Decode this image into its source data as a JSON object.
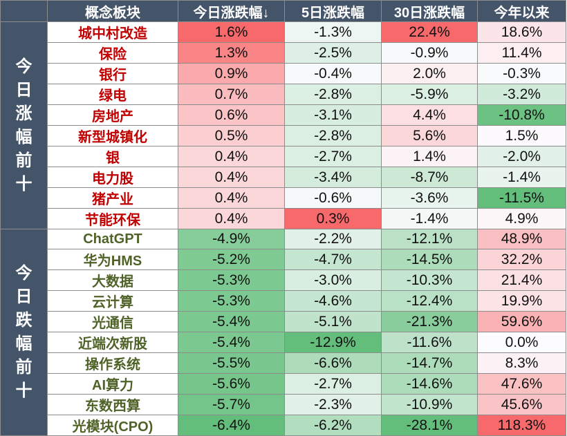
{
  "chart_data": {
    "type": "table",
    "columns": [
      "概念板块",
      "今日涨跌幅↓",
      "5日涨跌幅",
      "30日涨跌幅",
      "今年以来"
    ],
    "groups": [
      {
        "label": "今日涨幅前十",
        "rows": [
          {
            "name": "城中村改造",
            "values": [
              "1.6%",
              "-1.3%",
              "22.4%",
              "18.6%"
            ]
          },
          {
            "name": "保险",
            "values": [
              "1.3%",
              "-2.5%",
              "-0.9%",
              "11.4%"
            ]
          },
          {
            "name": "银行",
            "values": [
              "0.9%",
              "-0.4%",
              "2.0%",
              "-0.3%"
            ]
          },
          {
            "name": "绿电",
            "values": [
              "0.7%",
              "-2.8%",
              "-5.9%",
              "-3.2%"
            ]
          },
          {
            "name": "房地产",
            "values": [
              "0.6%",
              "-3.1%",
              "4.4%",
              "-10.8%"
            ]
          },
          {
            "name": "新型城镇化",
            "values": [
              "0.5%",
              "-2.8%",
              "5.6%",
              "1.5%"
            ]
          },
          {
            "name": "银",
            "values": [
              "0.4%",
              "-2.7%",
              "1.4%",
              "-2.0%"
            ]
          },
          {
            "name": "电力股",
            "values": [
              "0.4%",
              "-3.4%",
              "-8.7%",
              "-1.4%"
            ]
          },
          {
            "name": "猪产业",
            "values": [
              "0.4%",
              "-0.6%",
              "-3.6%",
              "-11.5%"
            ]
          },
          {
            "name": "节能环保",
            "values": [
              "0.4%",
              "0.3%",
              "-1.4%",
              "4.9%"
            ]
          }
        ]
      },
      {
        "label": "今日跌幅前十",
        "rows": [
          {
            "name": "ChatGPT",
            "values": [
              "-4.9%",
              "-2.2%",
              "-12.1%",
              "48.9%"
            ]
          },
          {
            "name": "华为HMS",
            "values": [
              "-5.2%",
              "-4.7%",
              "-14.5%",
              "32.2%"
            ]
          },
          {
            "name": "大数据",
            "values": [
              "-5.3%",
              "-3.0%",
              "-10.3%",
              "21.4%"
            ]
          },
          {
            "name": "云计算",
            "values": [
              "-5.3%",
              "-4.6%",
              "-12.4%",
              "19.9%"
            ]
          },
          {
            "name": "光通信",
            "values": [
              "-5.4%",
              "-5.1%",
              "-21.3%",
              "59.6%"
            ]
          },
          {
            "name": "近端次新股",
            "values": [
              "-5.4%",
              "-12.9%",
              "-11.6%",
              "0.0%"
            ]
          },
          {
            "name": "操作系统",
            "values": [
              "-5.5%",
              "-6.6%",
              "-14.7%",
              "8.3%"
            ]
          },
          {
            "name": "AI算力",
            "values": [
              "-5.6%",
              "-2.7%",
              "-14.6%",
              "47.6%"
            ]
          },
          {
            "name": "东数西算",
            "values": [
              "-5.7%",
              "-2.3%",
              "-10.9%",
              "45.6%"
            ]
          },
          {
            "name": "光模块(CPO)",
            "values": [
              "-6.4%",
              "-6.2%",
              "-28.1%",
              "118.3%"
            ]
          }
        ]
      }
    ]
  },
  "colors": {
    "header_bg": "#445469",
    "header_text": "#ffffff",
    "rise_name": "#c00000",
    "fall_name": "#4f6228",
    "positive_strong": "#f8696b",
    "negative_strong": "#63be7b",
    "neutral": "#fcfcff"
  }
}
